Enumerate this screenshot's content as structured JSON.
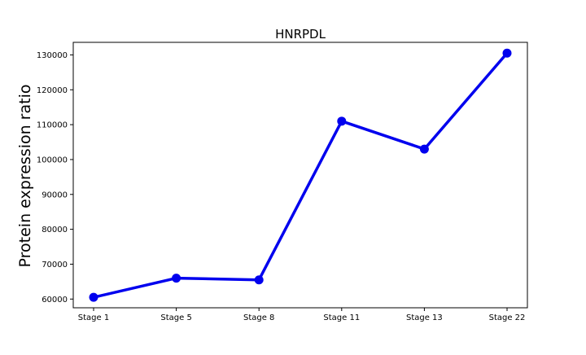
{
  "chart_data": {
    "type": "line",
    "title": "HNRPDL",
    "xlabel": "",
    "ylabel": "Protein expression ratio",
    "categories": [
      "Stage 1",
      "Stage 5",
      "Stage 8",
      "Stage 11",
      "Stage 13",
      "Stage 22"
    ],
    "series": [
      {
        "name": "HNRPDL",
        "values": [
          60500,
          66000,
          65500,
          111000,
          103000,
          130500
        ]
      }
    ],
    "ylim": [
      57500,
      133600
    ],
    "yticks": [
      60000,
      70000,
      80000,
      90000,
      100000,
      110000,
      120000,
      130000
    ],
    "grid": false,
    "legend": false,
    "colors": {
      "line": "#0000ee",
      "marker": "#0000ee",
      "axes": "#000000"
    }
  }
}
